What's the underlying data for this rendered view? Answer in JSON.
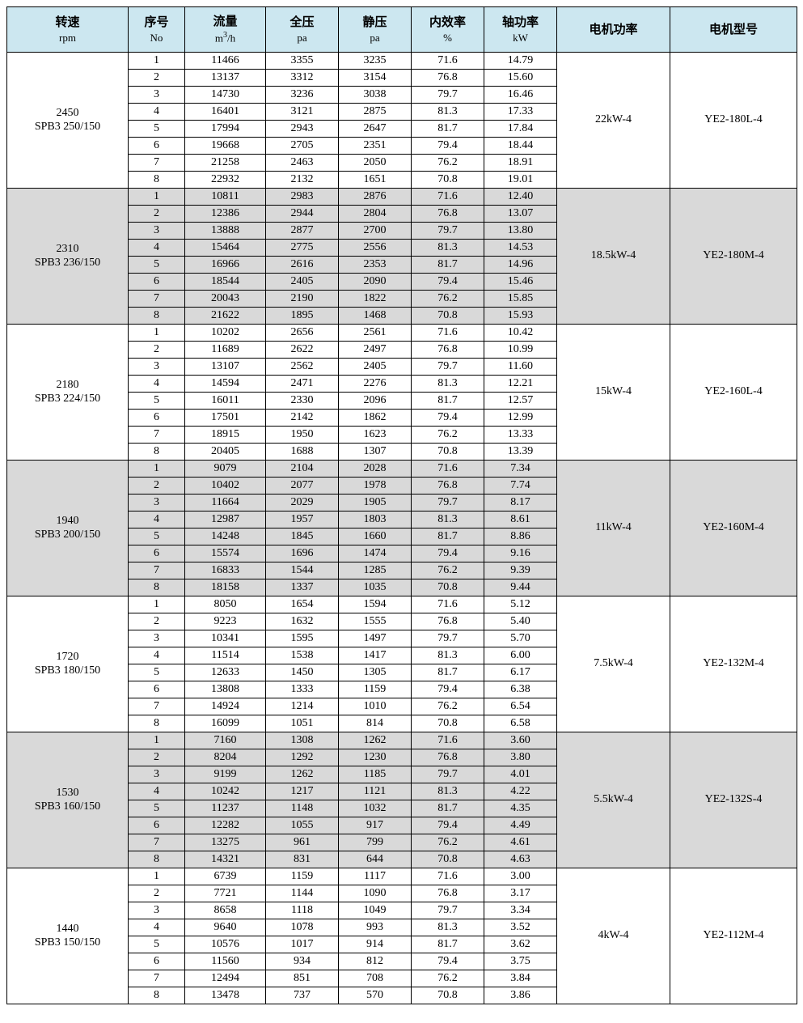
{
  "colors": {
    "header_bg": "#cce7f0",
    "group_even_bg": "#ffffff",
    "group_odd_bg": "#d9d9d9",
    "border": "#000000"
  },
  "columns": [
    {
      "key": "rpm",
      "label": "转速",
      "unit": "rpm"
    },
    {
      "key": "no",
      "label": "序号",
      "unit": "No"
    },
    {
      "key": "flow",
      "label": "流量",
      "unit": "m³/h"
    },
    {
      "key": "tp",
      "label": "全压",
      "unit": "pa"
    },
    {
      "key": "sp",
      "label": "静压",
      "unit": "pa"
    },
    {
      "key": "eff",
      "label": "内效率",
      "unit": "%"
    },
    {
      "key": "shaft",
      "label": "轴功率",
      "unit": "kW"
    },
    {
      "key": "mp",
      "label": "电机功率",
      "unit": ""
    },
    {
      "key": "mm",
      "label": "电机型号",
      "unit": ""
    }
  ],
  "groups": [
    {
      "rpm_line1": "2450",
      "rpm_line2": "SPB3 250/150",
      "motor_power": "22kW-4",
      "motor_model": "YE2-180L-4",
      "rows": [
        {
          "no": "1",
          "flow": "11466",
          "tp": "3355",
          "sp": "3235",
          "eff": "71.6",
          "shaft": "14.79"
        },
        {
          "no": "2",
          "flow": "13137",
          "tp": "3312",
          "sp": "3154",
          "eff": "76.8",
          "shaft": "15.60"
        },
        {
          "no": "3",
          "flow": "14730",
          "tp": "3236",
          "sp": "3038",
          "eff": "79.7",
          "shaft": "16.46"
        },
        {
          "no": "4",
          "flow": "16401",
          "tp": "3121",
          "sp": "2875",
          "eff": "81.3",
          "shaft": "17.33"
        },
        {
          "no": "5",
          "flow": "17994",
          "tp": "2943",
          "sp": "2647",
          "eff": "81.7",
          "shaft": "17.84"
        },
        {
          "no": "6",
          "flow": "19668",
          "tp": "2705",
          "sp": "2351",
          "eff": "79.4",
          "shaft": "18.44"
        },
        {
          "no": "7",
          "flow": "21258",
          "tp": "2463",
          "sp": "2050",
          "eff": "76.2",
          "shaft": "18.91"
        },
        {
          "no": "8",
          "flow": "22932",
          "tp": "2132",
          "sp": "1651",
          "eff": "70.8",
          "shaft": "19.01"
        }
      ]
    },
    {
      "rpm_line1": "2310",
      "rpm_line2": "SPB3 236/150",
      "motor_power": "18.5kW-4",
      "motor_model": "YE2-180M-4",
      "rows": [
        {
          "no": "1",
          "flow": "10811",
          "tp": "2983",
          "sp": "2876",
          "eff": "71.6",
          "shaft": "12.40"
        },
        {
          "no": "2",
          "flow": "12386",
          "tp": "2944",
          "sp": "2804",
          "eff": "76.8",
          "shaft": "13.07"
        },
        {
          "no": "3",
          "flow": "13888",
          "tp": "2877",
          "sp": "2700",
          "eff": "79.7",
          "shaft": "13.80"
        },
        {
          "no": "4",
          "flow": "15464",
          "tp": "2775",
          "sp": "2556",
          "eff": "81.3",
          "shaft": "14.53"
        },
        {
          "no": "5",
          "flow": "16966",
          "tp": "2616",
          "sp": "2353",
          "eff": "81.7",
          "shaft": "14.96"
        },
        {
          "no": "6",
          "flow": "18544",
          "tp": "2405",
          "sp": "2090",
          "eff": "79.4",
          "shaft": "15.46"
        },
        {
          "no": "7",
          "flow": "20043",
          "tp": "2190",
          "sp": "1822",
          "eff": "76.2",
          "shaft": "15.85"
        },
        {
          "no": "8",
          "flow": "21622",
          "tp": "1895",
          "sp": "1468",
          "eff": "70.8",
          "shaft": "15.93"
        }
      ]
    },
    {
      "rpm_line1": "2180",
      "rpm_line2": "SPB3 224/150",
      "motor_power": "15kW-4",
      "motor_model": "YE2-160L-4",
      "rows": [
        {
          "no": "1",
          "flow": "10202",
          "tp": "2656",
          "sp": "2561",
          "eff": "71.6",
          "shaft": "10.42"
        },
        {
          "no": "2",
          "flow": "11689",
          "tp": "2622",
          "sp": "2497",
          "eff": "76.8",
          "shaft": "10.99"
        },
        {
          "no": "3",
          "flow": "13107",
          "tp": "2562",
          "sp": "2405",
          "eff": "79.7",
          "shaft": "11.60"
        },
        {
          "no": "4",
          "flow": "14594",
          "tp": "2471",
          "sp": "2276",
          "eff": "81.3",
          "shaft": "12.21"
        },
        {
          "no": "5",
          "flow": "16011",
          "tp": "2330",
          "sp": "2096",
          "eff": "81.7",
          "shaft": "12.57"
        },
        {
          "no": "6",
          "flow": "17501",
          "tp": "2142",
          "sp": "1862",
          "eff": "79.4",
          "shaft": "12.99"
        },
        {
          "no": "7",
          "flow": "18915",
          "tp": "1950",
          "sp": "1623",
          "eff": "76.2",
          "shaft": "13.33"
        },
        {
          "no": "8",
          "flow": "20405",
          "tp": "1688",
          "sp": "1307",
          "eff": "70.8",
          "shaft": "13.39"
        }
      ]
    },
    {
      "rpm_line1": "1940",
      "rpm_line2": "SPB3 200/150",
      "motor_power": "11kW-4",
      "motor_model": "YE2-160M-4",
      "rows": [
        {
          "no": "1",
          "flow": "9079",
          "tp": "2104",
          "sp": "2028",
          "eff": "71.6",
          "shaft": "7.34"
        },
        {
          "no": "2",
          "flow": "10402",
          "tp": "2077",
          "sp": "1978",
          "eff": "76.8",
          "shaft": "7.74"
        },
        {
          "no": "3",
          "flow": "11664",
          "tp": "2029",
          "sp": "1905",
          "eff": "79.7",
          "shaft": "8.17"
        },
        {
          "no": "4",
          "flow": "12987",
          "tp": "1957",
          "sp": "1803",
          "eff": "81.3",
          "shaft": "8.61"
        },
        {
          "no": "5",
          "flow": "14248",
          "tp": "1845",
          "sp": "1660",
          "eff": "81.7",
          "shaft": "8.86"
        },
        {
          "no": "6",
          "flow": "15574",
          "tp": "1696",
          "sp": "1474",
          "eff": "79.4",
          "shaft": "9.16"
        },
        {
          "no": "7",
          "flow": "16833",
          "tp": "1544",
          "sp": "1285",
          "eff": "76.2",
          "shaft": "9.39"
        },
        {
          "no": "8",
          "flow": "18158",
          "tp": "1337",
          "sp": "1035",
          "eff": "70.8",
          "shaft": "9.44"
        }
      ]
    },
    {
      "rpm_line1": "1720",
      "rpm_line2": "SPB3 180/150",
      "motor_power": "7.5kW-4",
      "motor_model": "YE2-132M-4",
      "rows": [
        {
          "no": "1",
          "flow": "8050",
          "tp": "1654",
          "sp": "1594",
          "eff": "71.6",
          "shaft": "5.12"
        },
        {
          "no": "2",
          "flow": "9223",
          "tp": "1632",
          "sp": "1555",
          "eff": "76.8",
          "shaft": "5.40"
        },
        {
          "no": "3",
          "flow": "10341",
          "tp": "1595",
          "sp": "1497",
          "eff": "79.7",
          "shaft": "5.70"
        },
        {
          "no": "4",
          "flow": "11514",
          "tp": "1538",
          "sp": "1417",
          "eff": "81.3",
          "shaft": "6.00"
        },
        {
          "no": "5",
          "flow": "12633",
          "tp": "1450",
          "sp": "1305",
          "eff": "81.7",
          "shaft": "6.17"
        },
        {
          "no": "6",
          "flow": "13808",
          "tp": "1333",
          "sp": "1159",
          "eff": "79.4",
          "shaft": "6.38"
        },
        {
          "no": "7",
          "flow": "14924",
          "tp": "1214",
          "sp": "1010",
          "eff": "76.2",
          "shaft": "6.54"
        },
        {
          "no": "8",
          "flow": "16099",
          "tp": "1051",
          "sp": "814",
          "eff": "70.8",
          "shaft": "6.58"
        }
      ]
    },
    {
      "rpm_line1": "1530",
      "rpm_line2": "SPB3 160/150",
      "motor_power": "5.5kW-4",
      "motor_model": "YE2-132S-4",
      "rows": [
        {
          "no": "1",
          "flow": "7160",
          "tp": "1308",
          "sp": "1262",
          "eff": "71.6",
          "shaft": "3.60"
        },
        {
          "no": "2",
          "flow": "8204",
          "tp": "1292",
          "sp": "1230",
          "eff": "76.8",
          "shaft": "3.80"
        },
        {
          "no": "3",
          "flow": "9199",
          "tp": "1262",
          "sp": "1185",
          "eff": "79.7",
          "shaft": "4.01"
        },
        {
          "no": "4",
          "flow": "10242",
          "tp": "1217",
          "sp": "1121",
          "eff": "81.3",
          "shaft": "4.22"
        },
        {
          "no": "5",
          "flow": "11237",
          "tp": "1148",
          "sp": "1032",
          "eff": "81.7",
          "shaft": "4.35"
        },
        {
          "no": "6",
          "flow": "12282",
          "tp": "1055",
          "sp": "917",
          "eff": "79.4",
          "shaft": "4.49"
        },
        {
          "no": "7",
          "flow": "13275",
          "tp": "961",
          "sp": "799",
          "eff": "76.2",
          "shaft": "4.61"
        },
        {
          "no": "8",
          "flow": "14321",
          "tp": "831",
          "sp": "644",
          "eff": "70.8",
          "shaft": "4.63"
        }
      ]
    },
    {
      "rpm_line1": "1440",
      "rpm_line2": "SPB3 150/150",
      "motor_power": "4kW-4",
      "motor_model": "YE2-112M-4",
      "rows": [
        {
          "no": "1",
          "flow": "6739",
          "tp": "1159",
          "sp": "1117",
          "eff": "71.6",
          "shaft": "3.00"
        },
        {
          "no": "2",
          "flow": "7721",
          "tp": "1144",
          "sp": "1090",
          "eff": "76.8",
          "shaft": "3.17"
        },
        {
          "no": "3",
          "flow": "8658",
          "tp": "1118",
          "sp": "1049",
          "eff": "79.7",
          "shaft": "3.34"
        },
        {
          "no": "4",
          "flow": "9640",
          "tp": "1078",
          "sp": "993",
          "eff": "81.3",
          "shaft": "3.52"
        },
        {
          "no": "5",
          "flow": "10576",
          "tp": "1017",
          "sp": "914",
          "eff": "81.7",
          "shaft": "3.62"
        },
        {
          "no": "6",
          "flow": "11560",
          "tp": "934",
          "sp": "812",
          "eff": "79.4",
          "shaft": "3.75"
        },
        {
          "no": "7",
          "flow": "12494",
          "tp": "851",
          "sp": "708",
          "eff": "76.2",
          "shaft": "3.84"
        },
        {
          "no": "8",
          "flow": "13478",
          "tp": "737",
          "sp": "570",
          "eff": "70.8",
          "shaft": "3.86"
        }
      ]
    }
  ]
}
